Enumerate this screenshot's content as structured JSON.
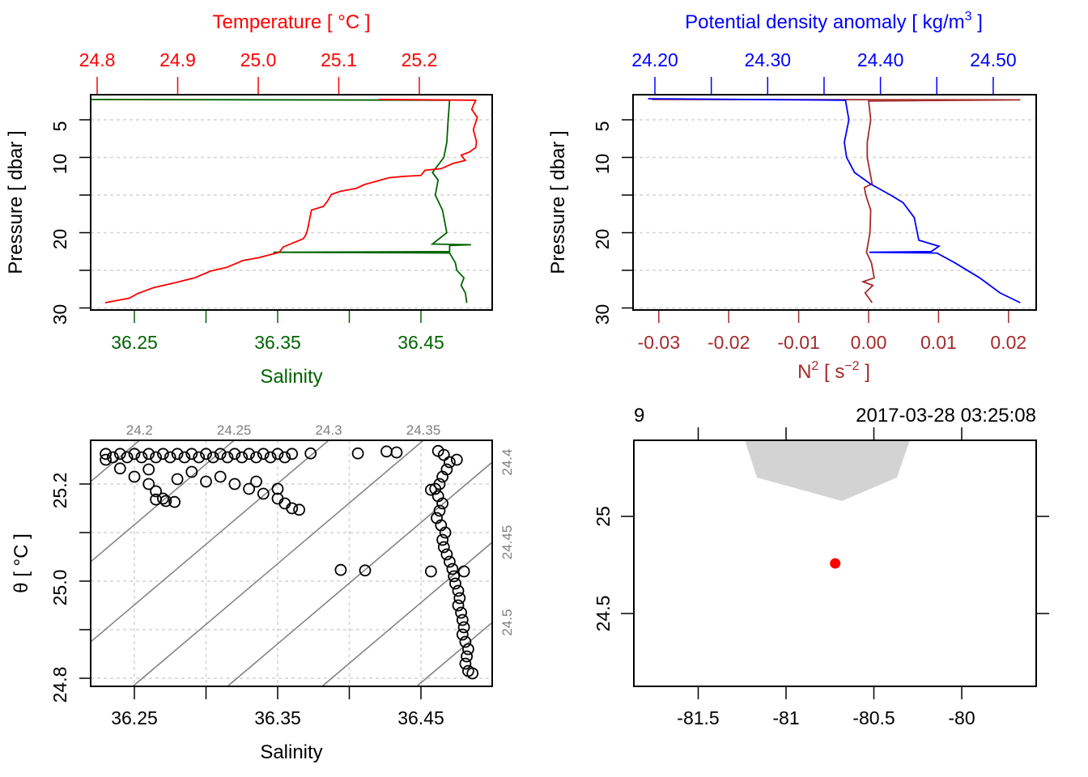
{
  "chart_data": [
    {
      "type": "line",
      "panel": "temperature-salinity-profile",
      "ylabel": "Pressure [ dbar ]",
      "ylim": [
        30.2,
        1.7
      ],
      "yticks": [
        5,
        10,
        15,
        20,
        25,
        30
      ],
      "ytick_labels": [
        {
          "v": 5,
          "t": "5"
        },
        {
          "v": 10,
          "t": "10"
        },
        {
          "v": 20,
          "t": "20"
        },
        {
          "v": 30,
          "t": "30"
        }
      ],
      "grid": true,
      "series": [
        {
          "name": "Temperature",
          "axis_title": "Temperature [ °C ]",
          "axis": "top",
          "color": "#FF0000",
          "ticks": [
            24.8,
            24.9,
            25.0,
            25.1,
            25.2
          ],
          "tick_labels": [
            {
              "v": 24.8,
              "t": "24.8"
            },
            {
              "v": 24.9,
              "t": "24.9"
            },
            {
              "v": 25.0,
              "t": "25.0"
            },
            {
              "v": 25.1,
              "t": "25.1"
            },
            {
              "v": 25.2,
              "t": "25.2"
            }
          ],
          "pressure": [
            2.3,
            2.4,
            3.6,
            4.7,
            6.3,
            7.9,
            8.7,
            9.3,
            9.7,
            10.4,
            10.8,
            11.5,
            11.7,
            12.4,
            12.5,
            12.7,
            13.3,
            13.6,
            14.1,
            14.5,
            14.9,
            15.8,
            16.5,
            17.0,
            18.1,
            19.7,
            20.3,
            20.8,
            21.9,
            22.6,
            23.3,
            23.7,
            24.6,
            25.1,
            26.0,
            26.7,
            27.3,
            28.1,
            28.7,
            29.1,
            29.3
          ],
          "values": [
            25.15,
            25.27,
            25.265,
            25.272,
            25.267,
            25.271,
            25.27,
            25.262,
            25.252,
            25.257,
            25.242,
            25.227,
            25.207,
            25.202,
            25.182,
            25.162,
            25.142,
            25.132,
            25.122,
            25.102,
            25.091,
            25.086,
            25.081,
            25.066,
            25.064,
            25.061,
            25.059,
            25.056,
            25.031,
            25.026,
            25.001,
            24.981,
            24.961,
            24.941,
            24.921,
            24.895,
            24.87,
            24.85,
            24.84,
            24.82,
            24.81
          ]
        },
        {
          "name": "Salinity",
          "axis_title": "Salinity",
          "axis": "bottom",
          "color": "#006400",
          "ticks": [
            36.25,
            36.3,
            36.35,
            36.4,
            36.45
          ],
          "tick_labels": [
            {
              "v": 36.25,
              "t": "36.25"
            },
            {
              "v": 36.35,
              "t": "36.35"
            },
            {
              "v": 36.45,
              "t": "36.45"
            }
          ],
          "pressure": [
            2.3,
            2.4,
            5,
            8,
            10,
            12,
            13,
            15,
            17,
            20,
            21.5,
            21.6,
            21.7,
            22.5,
            22.6,
            22.7,
            24,
            25,
            26,
            27,
            28,
            29.3
          ],
          "values": [
            36.22,
            36.47,
            36.469,
            36.468,
            36.466,
            36.458,
            36.462,
            36.46,
            36.465,
            36.468,
            36.458,
            36.485,
            36.47,
            36.47,
            36.347,
            36.47,
            36.474,
            36.475,
            36.48,
            36.478,
            36.481,
            36.482
          ]
        }
      ]
    },
    {
      "type": "line",
      "panel": "density-n2-profile",
      "ylabel": "Pressure [ dbar ]",
      "ylim": [
        30.2,
        1.7
      ],
      "yticks": [
        5,
        10,
        15,
        20,
        25,
        30
      ],
      "ytick_labels": [
        {
          "v": 5,
          "t": "5"
        },
        {
          "v": 10,
          "t": "10"
        },
        {
          "v": 20,
          "t": "20"
        },
        {
          "v": 30,
          "t": "30"
        }
      ],
      "grid": true,
      "series": [
        {
          "name": "Potential density anomaly",
          "axis_title_parts": [
            "Potential density anomaly [ kg/m",
            "3",
            " ]"
          ],
          "axis": "top",
          "color": "#0000FF",
          "ticks": [
            24.2,
            24.25,
            24.3,
            24.35,
            24.4,
            24.45,
            24.5
          ],
          "tick_labels": [
            {
              "v": 24.2,
              "t": "24.20"
            },
            {
              "v": 24.3,
              "t": "24.30"
            },
            {
              "v": 24.4,
              "t": "24.40"
            },
            {
              "v": 24.5,
              "t": "24.50"
            }
          ],
          "pressure": [
            2.2,
            2.4,
            5,
            8,
            10,
            12,
            13.5,
            15,
            16,
            18,
            21,
            21.8,
            22.5,
            22.6,
            22.7,
            24,
            26,
            28,
            29.3
          ],
          "values": [
            24.194,
            24.369,
            24.372,
            24.368,
            24.37,
            24.377,
            24.391,
            24.409,
            24.42,
            24.43,
            24.434,
            24.452,
            24.445,
            24.39,
            24.45,
            24.466,
            24.488,
            24.506,
            24.524
          ]
        },
        {
          "name": "N2",
          "axis_title_parts": [
            "N",
            "2",
            " [ s",
            "−2",
            " ]"
          ],
          "axis": "bottom",
          "color": "#A52A2A",
          "ticks": [
            -0.03,
            -0.02,
            -0.01,
            0.0,
            0.01,
            0.02
          ],
          "tick_labels": [
            {
              "v": -0.03,
              "t": "-0.03"
            },
            {
              "v": -0.02,
              "t": "-0.02"
            },
            {
              "v": -0.01,
              "t": "-0.01"
            },
            {
              "v": 0.0,
              "t": "0.00"
            },
            {
              "v": 0.01,
              "t": "0.01"
            },
            {
              "v": 0.02,
              "t": "0.02"
            }
          ],
          "pressure": [
            2.3,
            2.35,
            2.5,
            5,
            8,
            10,
            13.5,
            14,
            15,
            17,
            20,
            22.6,
            24,
            26,
            26.5,
            27,
            28,
            29.3
          ],
          "values": [
            -0.031,
            0.0217,
            0.0,
            0.0003,
            -0.0002,
            -0.0002,
            0.0005,
            -0.0006,
            -0.0004,
            0.0003,
            0.0002,
            -0.0003,
            0.0004,
            0.0008,
            -0.0008,
            0.0006,
            -0.0005,
            0.0005
          ]
        }
      ]
    },
    {
      "type": "scatter",
      "panel": "TS-diagram",
      "xlabel": "Salinity",
      "ylabel": "θ [ °C ]",
      "xticks": [
        36.25,
        36.3,
        36.35,
        36.4,
        36.45
      ],
      "xtick_labels": [
        {
          "v": 36.25,
          "t": "36.25"
        },
        {
          "v": 36.35,
          "t": "36.35"
        },
        {
          "v": 36.45,
          "t": "36.45"
        }
      ],
      "yticks": [
        24.8,
        24.9,
        25.0,
        25.1,
        25.2
      ],
      "ytick_labels": [
        {
          "v": 24.8,
          "t": "24.8"
        },
        {
          "v": 25.0,
          "t": "25.0"
        },
        {
          "v": 25.2,
          "t": "25.2"
        }
      ],
      "xlim": [
        36.22,
        36.5
      ],
      "ylim": [
        24.795,
        25.29
      ],
      "grid": true,
      "isopycnal_color": "#7F7F7F",
      "isopycnals": [
        24.15,
        24.2,
        24.25,
        24.3,
        24.35,
        24.4,
        24.45,
        24.5,
        24.55
      ],
      "isopycnal_labels_top": [
        {
          "v": 24.2,
          "t": "24.2"
        },
        {
          "v": 24.25,
          "t": "24.25"
        },
        {
          "v": 24.3,
          "t": "24.3"
        },
        {
          "v": 24.35,
          "t": "24.35"
        }
      ],
      "isopycnal_labels_right": [
        {
          "v": 24.4,
          "t": "24.4"
        },
        {
          "v": 24.45,
          "t": "24.45"
        },
        {
          "v": 24.5,
          "t": "24.5"
        }
      ],
      "points": [
        [
          36.23,
          25.262
        ],
        [
          36.24,
          25.262
        ],
        [
          36.25,
          25.262
        ],
        [
          36.26,
          25.262
        ],
        [
          36.27,
          25.262
        ],
        [
          36.28,
          25.262
        ],
        [
          36.29,
          25.262
        ],
        [
          36.3,
          25.262
        ],
        [
          36.31,
          25.262
        ],
        [
          36.32,
          25.262
        ],
        [
          36.33,
          25.262
        ],
        [
          36.34,
          25.262
        ],
        [
          36.35,
          25.262
        ],
        [
          36.36,
          25.262
        ],
        [
          36.235,
          25.255
        ],
        [
          36.245,
          25.255
        ],
        [
          36.255,
          25.255
        ],
        [
          36.265,
          25.255
        ],
        [
          36.275,
          25.255
        ],
        [
          36.285,
          25.255
        ],
        [
          36.295,
          25.255
        ],
        [
          36.305,
          25.255
        ],
        [
          36.315,
          25.255
        ],
        [
          36.325,
          25.255
        ],
        [
          36.335,
          25.255
        ],
        [
          36.345,
          25.255
        ],
        [
          36.355,
          25.255
        ],
        [
          36.23,
          25.25
        ],
        [
          36.24,
          25.232
        ],
        [
          36.25,
          25.215
        ],
        [
          36.26,
          25.2
        ],
        [
          36.265,
          25.185
        ],
        [
          36.27,
          25.17
        ],
        [
          36.278,
          25.163
        ],
        [
          36.272,
          25.165
        ],
        [
          36.265,
          25.168
        ],
        [
          36.26,
          25.23
        ],
        [
          36.28,
          25.21
        ],
        [
          36.3,
          25.205
        ],
        [
          36.32,
          25.2
        ],
        [
          36.33,
          25.19
        ],
        [
          36.34,
          25.18
        ],
        [
          36.35,
          25.17
        ],
        [
          36.355,
          25.16
        ],
        [
          36.36,
          25.15
        ],
        [
          36.365,
          25.147
        ],
        [
          36.29,
          25.225
        ],
        [
          36.31,
          25.215
        ],
        [
          36.335,
          25.205
        ],
        [
          36.35,
          25.19
        ],
        [
          36.373,
          25.263
        ],
        [
          36.406,
          25.263
        ],
        [
          36.426,
          25.267
        ],
        [
          36.433,
          25.265
        ],
        [
          36.394,
          25.023
        ],
        [
          36.411,
          25.022
        ],
        [
          36.457,
          25.02
        ],
        [
          36.462,
          25.268
        ],
        [
          36.466,
          25.26
        ],
        [
          36.47,
          25.245
        ],
        [
          36.468,
          25.23
        ],
        [
          36.465,
          25.215
        ],
        [
          36.463,
          25.2
        ],
        [
          36.46,
          25.19
        ],
        [
          36.462,
          25.175
        ],
        [
          36.465,
          25.16
        ],
        [
          36.463,
          25.145
        ],
        [
          36.461,
          25.13
        ],
        [
          36.464,
          25.115
        ],
        [
          36.467,
          25.1
        ],
        [
          36.465,
          25.085
        ],
        [
          36.466,
          25.07
        ],
        [
          36.468,
          25.055
        ],
        [
          36.47,
          25.04
        ],
        [
          36.472,
          25.025
        ],
        [
          36.48,
          25.02
        ],
        [
          36.473,
          25.01
        ],
        [
          36.474,
          24.995
        ],
        [
          36.476,
          24.98
        ],
        [
          36.477,
          24.965
        ],
        [
          36.476,
          24.95
        ],
        [
          36.478,
          24.935
        ],
        [
          36.479,
          24.92
        ],
        [
          36.48,
          24.905
        ],
        [
          36.479,
          24.89
        ],
        [
          36.481,
          24.875
        ],
        [
          36.483,
          24.86
        ],
        [
          36.482,
          24.845
        ],
        [
          36.481,
          24.83
        ],
        [
          36.483,
          24.815
        ],
        [
          36.486,
          24.81
        ],
        [
          36.457,
          25.188
        ],
        [
          36.475,
          25.25
        ]
      ]
    },
    {
      "type": "map",
      "panel": "station-map",
      "station_label": "9",
      "datetime": "2017-03-28 03:25:08",
      "xlim": [
        -81.866,
        -79.576
      ],
      "ylim": [
        24.125,
        25.392
      ],
      "xticks": [
        -81.5,
        -81,
        -80.5,
        -80
      ],
      "xtick_labels": [
        {
          "v": -81.5,
          "t": "-81.5"
        },
        {
          "v": -81,
          "t": "-81"
        },
        {
          "v": -80.5,
          "t": "-80.5"
        },
        {
          "v": -80,
          "t": "-80"
        }
      ],
      "yticks": [
        25,
        24.5
      ],
      "ytick_labels": [
        {
          "v": 25,
          "t": "25"
        },
        {
          "v": 24.5,
          "t": "24.5"
        }
      ],
      "land_color": "#D3D3D3",
      "land": [
        [
          -81.235,
          25.392
        ],
        [
          -81.166,
          25.2
        ],
        [
          -80.682,
          25.079
        ],
        [
          -80.369,
          25.2
        ],
        [
          -80.295,
          25.392
        ]
      ],
      "station": {
        "lon": -80.72,
        "lat": 24.758,
        "color": "#FF0000"
      }
    }
  ]
}
